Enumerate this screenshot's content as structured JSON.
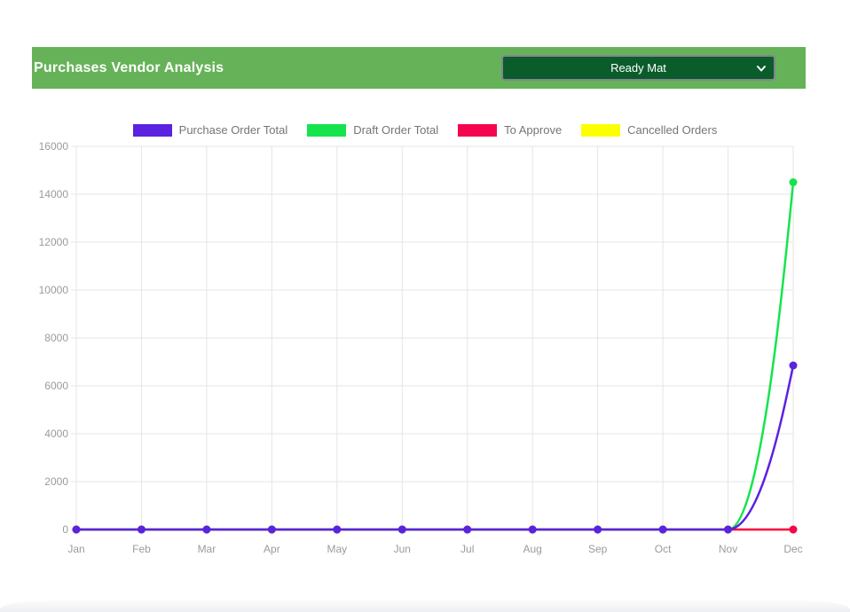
{
  "header": {
    "title": "Purchases Vendor Analysis",
    "vendor_select": {
      "value": "Ready Mat"
    }
  },
  "theme": {
    "header_bg": "#66b258",
    "select_bg": "#0a5c2b",
    "grid_color": "#e5e5e5",
    "tick_label_color": "#9b9b9b"
  },
  "chart_data": {
    "type": "line",
    "title": "",
    "xlabel": "",
    "ylabel": "",
    "categories": [
      "Jan",
      "Feb",
      "Mar",
      "Apr",
      "May",
      "Jun",
      "Jul",
      "Aug",
      "Sep",
      "Oct",
      "Nov",
      "Dec"
    ],
    "series": [
      {
        "name": "Purchase Order Total",
        "color": "#5b22e0",
        "values": [
          0,
          0,
          0,
          0,
          0,
          0,
          0,
          0,
          0,
          0,
          0,
          6850
        ]
      },
      {
        "name": "Draft Order Total",
        "color": "#15e44d",
        "values": [
          0,
          0,
          0,
          0,
          0,
          0,
          0,
          0,
          0,
          0,
          0,
          14500
        ]
      },
      {
        "name": "To Approve",
        "color": "#f5054f",
        "values": [
          0,
          0,
          0,
          0,
          0,
          0,
          0,
          0,
          0,
          0,
          0,
          0
        ]
      },
      {
        "name": "Cancelled Orders",
        "color": "#fcff00",
        "values": [
          0,
          0,
          0,
          0,
          0,
          0,
          0,
          0,
          0,
          0,
          0,
          0
        ]
      }
    ],
    "ylim": [
      0,
      16000
    ],
    "ytick_step": 2000,
    "grid": true,
    "legend_position": "top"
  }
}
